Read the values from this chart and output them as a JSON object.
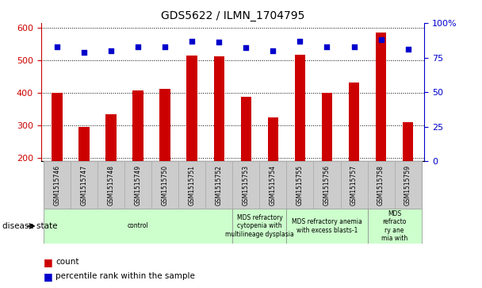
{
  "title": "GDS5622 / ILMN_1704795",
  "samples": [
    "GSM1515746",
    "GSM1515747",
    "GSM1515748",
    "GSM1515749",
    "GSM1515750",
    "GSM1515751",
    "GSM1515752",
    "GSM1515753",
    "GSM1515754",
    "GSM1515755",
    "GSM1515756",
    "GSM1515757",
    "GSM1515758",
    "GSM1515759"
  ],
  "counts": [
    400,
    296,
    335,
    408,
    412,
    515,
    513,
    388,
    325,
    518,
    400,
    432,
    585,
    310
  ],
  "percentile_ranks": [
    83,
    79,
    80,
    83,
    83,
    87,
    86,
    82,
    80,
    87,
    83,
    83,
    88,
    81
  ],
  "ylim_left": [
    190,
    615
  ],
  "ylim_right": [
    0,
    100
  ],
  "yticks_left": [
    200,
    300,
    400,
    500,
    600
  ],
  "yticks_right": [
    0,
    25,
    50,
    75,
    100
  ],
  "bar_color": "#cc0000",
  "dot_color": "#0000cc",
  "sample_box_color": "#cccccc",
  "sample_box_edge": "#aaaaaa",
  "bg_color": "#ffffff",
  "disease_groups": [
    {
      "label": "control",
      "start": 0,
      "end": 7
    },
    {
      "label": "MDS refractory\ncytopenia with\nmultilineage dysplasia",
      "start": 7,
      "end": 9
    },
    {
      "label": "MDS refractory anemia\nwith excess blasts-1",
      "start": 9,
      "end": 12
    },
    {
      "label": "MDS\nrefracto\nry ane\nmia with",
      "start": 12,
      "end": 14
    }
  ],
  "disease_box_color": "#ccffcc",
  "disease_box_edge": "#888888",
  "xlabel_disease": "disease state",
  "legend_count": "count",
  "legend_percentile": "percentile rank within the sample",
  "bar_width": 0.4,
  "dot_size": 20
}
